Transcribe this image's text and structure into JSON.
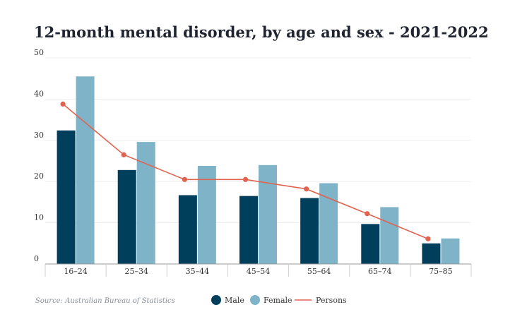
{
  "chart_data": {
    "type": "bar",
    "title": "12-month mental disorder, by age and sex - 2021-2022",
    "categories": [
      "16–24",
      "25–34",
      "35–44",
      "45–54",
      "55–64",
      "65–74",
      "75–85"
    ],
    "series": [
      {
        "name": "Male",
        "type": "bar",
        "color": "#003f5c",
        "values": [
          32.4,
          22.8,
          16.7,
          16.5,
          16.0,
          9.7,
          5.0
        ]
      },
      {
        "name": "Female",
        "type": "bar",
        "color": "#7fb3c8",
        "values": [
          45.5,
          29.6,
          23.8,
          24.0,
          19.6,
          13.8,
          6.2
        ]
      },
      {
        "name": "Persons",
        "type": "line",
        "color": "#e06350",
        "values": [
          38.8,
          26.5,
          20.5,
          20.5,
          18.2,
          12.2,
          6.1
        ]
      }
    ],
    "ylim": [
      0,
      50
    ],
    "yticks": [
      "0",
      "10",
      "20",
      "30",
      "40",
      "50"
    ],
    "grid": true,
    "legend": "bottom",
    "source": "Source: Australian Bureau of Statistics"
  }
}
